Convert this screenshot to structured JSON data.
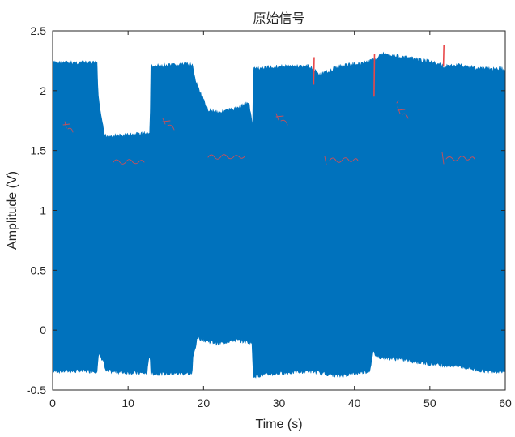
{
  "chart_data": {
    "type": "line",
    "title": "原始信号",
    "xlabel": "Time (s)",
    "ylabel": "Amplitude (V)",
    "xlim": [
      0,
      60
    ],
    "ylim": [
      -0.5,
      2.5
    ],
    "xticks": [
      "0",
      "10",
      "20",
      "30",
      "40",
      "50",
      "60"
    ],
    "yticks": [
      "-0.5",
      "0",
      "0.5",
      "1",
      "1.5",
      "2",
      "2.5"
    ],
    "grid": false,
    "series": [
      {
        "color": "#0072BD",
        "upper_envelope": {
          "x": [
            0,
            5.9,
            6.0,
            6.4,
            6.9,
            9,
            12,
            12.9,
            13.0,
            16,
            18.5,
            18.9,
            19.9,
            20.5,
            22,
            24,
            26,
            26.5,
            26.6,
            30,
            34,
            35.5,
            38,
            42,
            44,
            46,
            48,
            50,
            52,
            54,
            57,
            60
          ],
          "y": [
            2.25,
            2.25,
            2.0,
            1.8,
            1.64,
            1.64,
            1.66,
            1.66,
            2.22,
            2.23,
            2.24,
            2.1,
            1.95,
            1.86,
            1.84,
            1.86,
            1.92,
            1.72,
            2.2,
            2.22,
            2.22,
            2.15,
            2.22,
            2.26,
            2.33,
            2.3,
            2.28,
            2.26,
            2.22,
            2.23,
            2.2,
            2.2
          ]
        },
        "lower_envelope": {
          "x": [
            0,
            5.9,
            6.1,
            6.8,
            7.0,
            12.5,
            12.9,
            13.0,
            18.5,
            18.6,
            19.2,
            20,
            22,
            24,
            26.4,
            26.6,
            30,
            34,
            38,
            42,
            42.5,
            43,
            46,
            50,
            54,
            57,
            60
          ],
          "y": [
            -0.36,
            -0.36,
            -0.22,
            -0.28,
            -0.36,
            -0.38,
            -0.2,
            -0.38,
            -0.38,
            -0.25,
            -0.08,
            -0.1,
            -0.13,
            -0.1,
            -0.12,
            -0.4,
            -0.38,
            -0.36,
            -0.4,
            -0.36,
            -0.2,
            -0.24,
            -0.26,
            -0.3,
            -0.32,
            -0.36,
            -0.36
          ]
        }
      }
    ],
    "spikes": {
      "color": "#E8484A",
      "items": [
        {
          "x": 34.6,
          "y_low": 2.05,
          "y_high": 2.28
        },
        {
          "x": 42.6,
          "y_low": 1.95,
          "y_high": 2.31
        },
        {
          "x": 51.8,
          "y_low": 2.2,
          "y_high": 2.38
        }
      ]
    }
  }
}
